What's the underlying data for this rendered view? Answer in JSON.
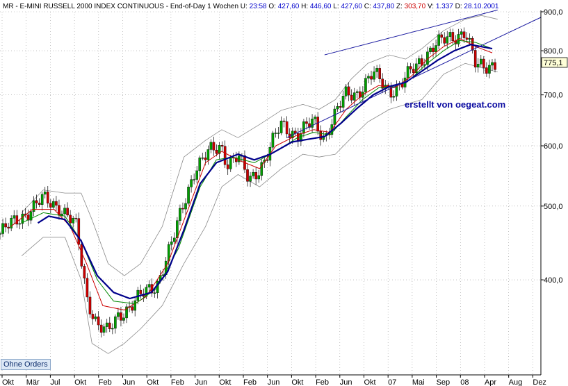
{
  "header": {
    "symbol": "MR",
    "title": "E-MINI RUSSELL 2000 INDEX CONTINUOUS",
    "interval": "End-of-Day 1 Wochen",
    "u_label": "U:",
    "u_value": "23:58",
    "o_label": "O:",
    "o_value": "427,60",
    "h_label": "H:",
    "h_value": "446,60",
    "l_label": "L:",
    "l_value": "427,60",
    "c_label": "C:",
    "c_value": "437,80",
    "z_label": "Z:",
    "z_value": "303,70",
    "v_label": "V:",
    "v_value": "1.337",
    "d_label": "D:",
    "d_value": "28.10.2001"
  },
  "annotation": "erstellt von oegeat.com",
  "button_label": "Ohne Orders",
  "last_value_label": "775,1",
  "colors": {
    "up_candle": "#00a000",
    "down_candle": "#cc0000",
    "ma_fast": "#cc0000",
    "ma_mid": "#008800",
    "ma_slow": "#00008b",
    "bollinger": "#8a8a8a",
    "trendline": "#1a1aa0",
    "grid": "#9a9a9a"
  },
  "chart_data": {
    "type": "candlestick",
    "y_scale": "log",
    "ylim": [
      300,
      900
    ],
    "y_ticks": [
      {
        "value": 400,
        "label": "400,0"
      },
      {
        "value": 500,
        "label": "500,0"
      },
      {
        "value": 600,
        "label": "600,0"
      },
      {
        "value": 700,
        "label": "700,0"
      },
      {
        "value": 800,
        "label": "800,0"
      },
      {
        "value": 900,
        "label": "900,0"
      }
    ],
    "x_ticks": [
      "Okt",
      "Mär",
      "Jul",
      "Okt",
      "Feb",
      "Jun",
      "Okt",
      "Feb",
      "Jun",
      "Okt",
      "Feb",
      "Jun",
      "Okt",
      "Feb",
      "Jun",
      "Okt",
      "07",
      "Mai",
      "Sep",
      "08",
      "Apr",
      "Aug",
      "Dez"
    ],
    "last_value": 775.1,
    "close_path": [
      [
        0,
        460
      ],
      [
        4,
        485
      ],
      [
        8,
        510
      ],
      [
        11,
        500
      ],
      [
        14,
        470
      ],
      [
        16,
        380
      ],
      [
        18,
        350
      ],
      [
        20,
        340
      ],
      [
        22,
        360
      ],
      [
        25,
        375
      ],
      [
        27,
        385
      ],
      [
        29,
        395
      ],
      [
        32,
        450
      ],
      [
        36,
        560
      ],
      [
        39,
        590
      ],
      [
        41,
        600
      ],
      [
        42,
        570
      ],
      [
        44,
        580
      ],
      [
        46,
        540
      ],
      [
        49,
        575
      ],
      [
        52,
        640
      ],
      [
        55,
        620
      ],
      [
        58,
        645
      ],
      [
        60,
        615
      ],
      [
        61,
        640
      ],
      [
        64,
        700
      ],
      [
        66,
        705
      ],
      [
        69,
        745
      ],
      [
        72,
        710
      ],
      [
        74,
        720
      ],
      [
        77,
        765
      ],
      [
        80,
        810
      ],
      [
        83,
        830
      ],
      [
        86,
        850
      ],
      [
        88,
        760
      ],
      [
        90,
        765
      ],
      [
        92,
        775
      ]
    ],
    "ma_fast": [
      [
        2,
        470
      ],
      [
        6,
        495
      ],
      [
        10,
        495
      ],
      [
        13,
        470
      ],
      [
        16,
        420
      ],
      [
        19,
        370
      ],
      [
        23,
        365
      ],
      [
        27,
        380
      ],
      [
        31,
        420
      ],
      [
        35,
        500
      ],
      [
        38,
        570
      ],
      [
        41,
        590
      ],
      [
        44,
        575
      ],
      [
        48,
        560
      ],
      [
        51,
        600
      ],
      [
        55,
        620
      ],
      [
        58,
        630
      ],
      [
        61,
        625
      ],
      [
        64,
        670
      ],
      [
        67,
        700
      ],
      [
        70,
        720
      ],
      [
        73,
        715
      ],
      [
        76,
        740
      ],
      [
        79,
        780
      ],
      [
        82,
        810
      ],
      [
        85,
        830
      ],
      [
        88,
        810
      ],
      [
        91,
        795
      ]
    ],
    "ma_mid": [
      [
        4,
        475
      ],
      [
        8,
        490
      ],
      [
        12,
        485
      ],
      [
        15,
        450
      ],
      [
        18,
        400
      ],
      [
        21,
        375
      ],
      [
        25,
        372
      ],
      [
        29,
        390
      ],
      [
        33,
        440
      ],
      [
        37,
        530
      ],
      [
        40,
        575
      ],
      [
        43,
        580
      ],
      [
        47,
        570
      ],
      [
        51,
        590
      ],
      [
        55,
        615
      ],
      [
        58,
        625
      ],
      [
        61,
        620
      ],
      [
        64,
        655
      ],
      [
        67,
        690
      ],
      [
        70,
        715
      ],
      [
        73,
        718
      ],
      [
        76,
        735
      ],
      [
        79,
        770
      ],
      [
        82,
        800
      ],
      [
        85,
        825
      ],
      [
        88,
        820
      ],
      [
        91,
        805
      ]
    ],
    "ma_slow": [
      [
        7,
        475
      ],
      [
        9,
        485
      ],
      [
        12,
        480
      ],
      [
        15,
        450
      ],
      [
        18,
        405
      ],
      [
        21,
        385
      ],
      [
        24,
        378
      ],
      [
        28,
        385
      ],
      [
        31,
        410
      ],
      [
        34,
        465
      ],
      [
        37,
        535
      ],
      [
        40,
        570
      ],
      [
        44,
        585
      ],
      [
        47,
        575
      ],
      [
        50,
        585
      ],
      [
        54,
        607
      ],
      [
        57,
        612
      ],
      [
        60,
        617
      ],
      [
        63,
        642
      ],
      [
        66,
        672
      ],
      [
        69,
        700
      ],
      [
        72,
        718
      ],
      [
        75,
        727
      ],
      [
        78,
        752
      ],
      [
        81,
        778
      ],
      [
        84,
        800
      ],
      [
        87,
        815
      ],
      [
        89,
        810
      ],
      [
        91,
        805
      ]
    ],
    "bollinger_upper": [
      [
        4,
        490
      ],
      [
        8,
        525
      ],
      [
        12,
        520
      ],
      [
        15,
        520
      ],
      [
        17,
        480
      ],
      [
        20,
        420
      ],
      [
        23,
        405
      ],
      [
        26,
        420
      ],
      [
        30,
        470
      ],
      [
        34,
        580
      ],
      [
        38,
        610
      ],
      [
        41,
        630
      ],
      [
        44,
        615
      ],
      [
        48,
        640
      ],
      [
        52,
        668
      ],
      [
        56,
        680
      ],
      [
        59,
        670
      ],
      [
        62,
        690
      ],
      [
        65,
        735
      ],
      [
        68,
        770
      ],
      [
        72,
        790
      ],
      [
        75,
        780
      ],
      [
        78,
        805
      ],
      [
        82,
        850
      ],
      [
        86,
        880
      ],
      [
        89,
        890
      ],
      [
        92,
        880
      ]
    ],
    "bollinger_lower": [
      [
        4,
        430
      ],
      [
        8,
        455
      ],
      [
        12,
        455
      ],
      [
        15,
        400
      ],
      [
        17,
        330
      ],
      [
        20,
        320
      ],
      [
        23,
        330
      ],
      [
        26,
        345
      ],
      [
        30,
        370
      ],
      [
        34,
        420
      ],
      [
        38,
        470
      ],
      [
        41,
        530
      ],
      [
        44,
        550
      ],
      [
        48,
        530
      ],
      [
        52,
        560
      ],
      [
        56,
        585
      ],
      [
        59,
        580
      ],
      [
        62,
        585
      ],
      [
        65,
        615
      ],
      [
        68,
        645
      ],
      [
        72,
        670
      ],
      [
        75,
        680
      ],
      [
        78,
        690
      ],
      [
        82,
        745
      ],
      [
        86,
        770
      ],
      [
        89,
        760
      ],
      [
        92,
        750
      ]
    ],
    "trendlines": [
      {
        "from": [
          60,
          790
        ],
        "to": [
          92,
          905
        ]
      },
      {
        "from": [
          53,
          615
        ],
        "to": [
          100,
          885
        ]
      }
    ]
  }
}
